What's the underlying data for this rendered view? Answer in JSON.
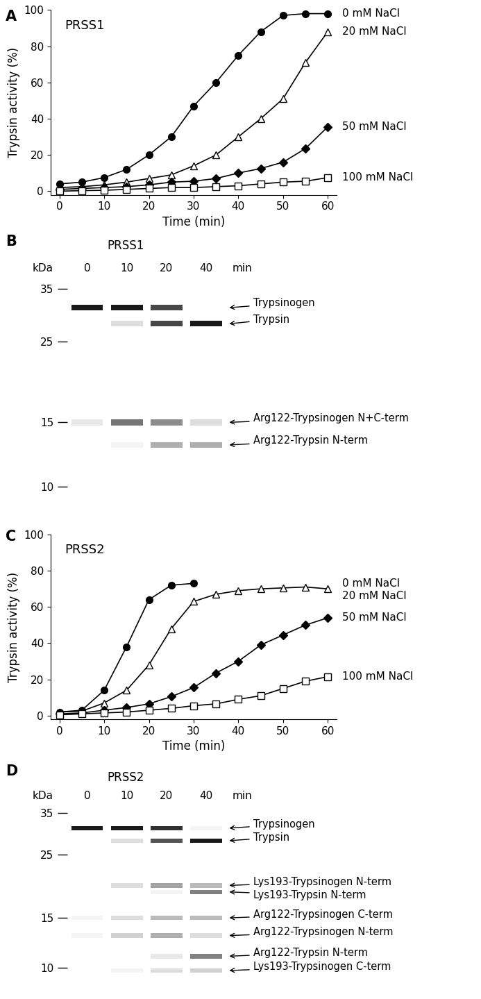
{
  "chart_data": [
    {
      "panel": "A",
      "type": "line",
      "title": "PRSS1",
      "x_label": "Time (min)",
      "y_label": "Trypsin activity (%)",
      "x": [
        0,
        5,
        10,
        15,
        20,
        25,
        30,
        35,
        40,
        45,
        50,
        55,
        60
      ],
      "xlim": [
        -2,
        62
      ],
      "xticks": [
        0,
        10,
        20,
        30,
        40,
        50,
        60
      ],
      "ylim": [
        -2,
        100
      ],
      "yticks": [
        0,
        20,
        40,
        60,
        80,
        100
      ],
      "series": [
        {
          "name": "0 mM NaCl",
          "color": "#000000",
          "marker": "circle",
          "values": [
            4,
            5,
            7.5,
            12,
            20,
            30,
            47,
            60,
            75,
            88,
            97,
            98,
            98
          ]
        },
        {
          "name": "20 mM NaCl",
          "color": "#000000",
          "marker": "open_triangle",
          "values": [
            2,
            2.5,
            3.5,
            5,
            7,
            9,
            14,
            20,
            30,
            40,
            51,
            71,
            88
          ]
        },
        {
          "name": "50 mM NaCl",
          "color": "#000000",
          "marker": "diamond",
          "values": [
            1,
            1.5,
            2,
            2.5,
            3.5,
            5,
            5.5,
            7,
            10,
            12.5,
            16,
            23.5,
            35.5
          ]
        },
        {
          "name": "100 mM NaCl",
          "color": "#000000",
          "marker": "open_square",
          "values": [
            0,
            0.3,
            0.5,
            1,
            1.5,
            2,
            2,
            2.5,
            3,
            4,
            5,
            5.5,
            7.5
          ]
        }
      ]
    },
    {
      "panel": "C",
      "type": "line",
      "title": "PRSS2",
      "x_label": "Time (min)",
      "y_label": "Trypsin activity (%)",
      "x": [
        0,
        5,
        10,
        15,
        20,
        25,
        30,
        35,
        40,
        45,
        50,
        55,
        60
      ],
      "xlim": [
        -2,
        62
      ],
      "xticks": [
        0,
        10,
        20,
        30,
        40,
        50,
        60
      ],
      "ylim": [
        -2,
        100
      ],
      "yticks": [
        0,
        20,
        40,
        60,
        80,
        100
      ],
      "series": [
        {
          "name": "0 mM NaCl",
          "color": "#000000",
          "marker": "circle",
          "values": [
            2,
            3,
            14,
            38,
            64,
            72,
            73,
            null,
            null,
            null,
            null,
            null,
            null
          ]
        },
        {
          "name": "20 mM NaCl",
          "color": "#000000",
          "marker": "open_triangle",
          "values": [
            2,
            2.5,
            7,
            14,
            28,
            48,
            63,
            67,
            69,
            70,
            70.5,
            71,
            70
          ]
        },
        {
          "name": "50 mM NaCl",
          "color": "#000000",
          "marker": "diamond",
          "values": [
            1,
            1.5,
            3,
            4.5,
            6.5,
            10.5,
            15.5,
            23.5,
            30,
            39,
            44.5,
            50,
            54
          ]
        },
        {
          "name": "100 mM NaCl",
          "color": "#000000",
          "marker": "open_square",
          "values": [
            0.5,
            1,
            1.5,
            2,
            3,
            4,
            5.5,
            6.5,
            9,
            11,
            15,
            19,
            21.5
          ]
        }
      ]
    }
  ],
  "gels": [
    {
      "panel": "B",
      "title": "PRSS1",
      "y_label": "kDa",
      "log": "y",
      "ylim": [
        9.5,
        37
      ],
      "yticks": [
        35,
        25,
        15,
        10
      ],
      "lanes": [
        "0",
        "10",
        "20",
        "40"
      ],
      "lane_unit": "min",
      "bands": [
        {
          "name": "Trypsinogen",
          "kDa": 31,
          "intensity": [
            1,
            1,
            0.8,
            0
          ]
        },
        {
          "name": "Trypsin",
          "kDa": 28,
          "intensity": [
            0,
            0.15,
            0.8,
            1
          ]
        },
        {
          "name": "Arg122-Trypsinogen N+C-term",
          "kDa": 15,
          "intensity": [
            0.1,
            0.6,
            0.5,
            0.15
          ]
        },
        {
          "name": "Arg122-Trypsin N-term",
          "kDa": 13,
          "intensity": [
            0,
            0.05,
            0.35,
            0.35
          ]
        }
      ]
    },
    {
      "panel": "D",
      "title": "PRSS2",
      "y_label": "kDa",
      "log": "y",
      "ylim": [
        9.0,
        37
      ],
      "yticks": [
        35,
        25,
        15,
        10
      ],
      "lanes": [
        "0",
        "10",
        "20",
        "40"
      ],
      "lane_unit": "min",
      "bands": [
        {
          "name": "Trypsinogen",
          "kDa": 31,
          "intensity": [
            1,
            1,
            0.9,
            0.05
          ]
        },
        {
          "name": "Trypsin",
          "kDa": 28,
          "intensity": [
            0,
            0.15,
            0.75,
            1
          ]
        },
        {
          "name": "Lys193-Trypsinogen N-term",
          "kDa": 19.5,
          "intensity": [
            0,
            0.15,
            0.4,
            0.3
          ]
        },
        {
          "name": "Lys193-Trypsin N-term",
          "kDa": 18.5,
          "intensity": [
            0,
            0,
            0.05,
            0.55
          ]
        },
        {
          "name": "Arg122-Trypsinogen C-term",
          "kDa": 15,
          "intensity": [
            0.05,
            0.15,
            0.3,
            0.3
          ]
        },
        {
          "name": "Arg122-Trypsinogen N-term",
          "kDa": 13,
          "intensity": [
            0.05,
            0.2,
            0.35,
            0.15
          ]
        },
        {
          "name": "Arg122-Trypsin N-term",
          "kDa": 11,
          "intensity": [
            0,
            0,
            0.1,
            0.55
          ]
        },
        {
          "name": "Lys193-Trypsinogen C-term",
          "kDa": 9.8,
          "intensity": [
            0,
            0.05,
            0.15,
            0.2
          ]
        }
      ]
    }
  ]
}
